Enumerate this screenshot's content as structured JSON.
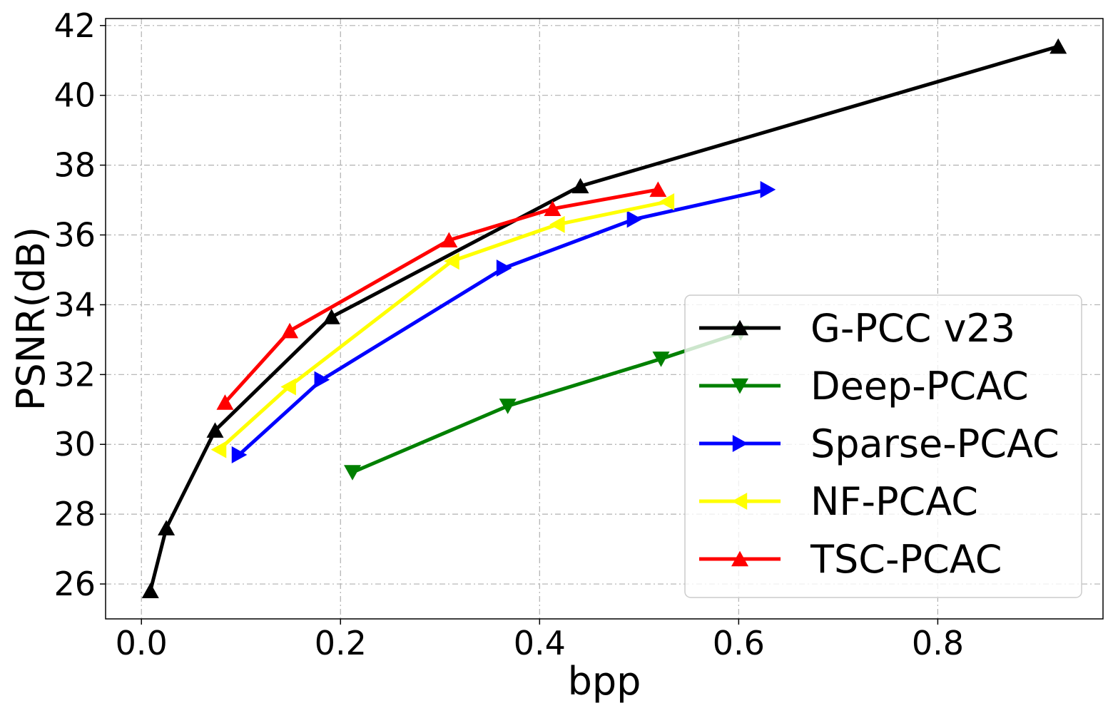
{
  "chart_data": {
    "type": "line",
    "title": "",
    "xlabel": "bpp",
    "ylabel": "PSNR(dB)",
    "xlim": [
      -0.036,
      0.966
    ],
    "ylim": [
      25.0,
      42.2
    ],
    "xticks": [
      0.0,
      0.2,
      0.4,
      0.6,
      0.8
    ],
    "xtick_labels": [
      "0.0",
      "0.2",
      "0.4",
      "0.6",
      "0.8"
    ],
    "yticks": [
      26,
      28,
      30,
      32,
      34,
      36,
      38,
      40,
      42
    ],
    "ytick_labels": [
      "26",
      "28",
      "30",
      "32",
      "34",
      "36",
      "38",
      "40",
      "42"
    ],
    "grid": true,
    "legend_position": "lower-right",
    "series": [
      {
        "name": "G-PCC v23",
        "color": "#000000",
        "marker": "triangle-up",
        "x": [
          0.009,
          0.025,
          0.074,
          0.191,
          0.441,
          0.921
        ],
        "y": [
          25.8,
          27.6,
          30.4,
          33.65,
          37.4,
          41.4
        ]
      },
      {
        "name": "Deep-PCAC",
        "color": "#008000",
        "marker": "triangle-down",
        "x": [
          0.212,
          0.368,
          0.522,
          0.602
        ],
        "y": [
          29.2,
          31.1,
          32.45,
          33.2
        ]
      },
      {
        "name": "Sparse-PCAC",
        "color": "#0000ff",
        "marker": "triangle-right",
        "x": [
          0.098,
          0.181,
          0.364,
          0.495,
          0.629
        ],
        "y": [
          29.7,
          31.85,
          35.05,
          36.45,
          37.3
        ]
      },
      {
        "name": "NF-PCAC",
        "color": "#ffff00",
        "marker": "triangle-left",
        "x": [
          0.078,
          0.148,
          0.312,
          0.418,
          0.528
        ],
        "y": [
          29.85,
          31.65,
          35.25,
          36.3,
          36.95
        ]
      },
      {
        "name": "TSC-PCAC",
        "color": "#ff0000",
        "marker": "triangle-up",
        "x": [
          0.084,
          0.149,
          0.309,
          0.413,
          0.519
        ],
        "y": [
          31.2,
          33.25,
          35.85,
          36.75,
          37.3
        ]
      }
    ]
  }
}
